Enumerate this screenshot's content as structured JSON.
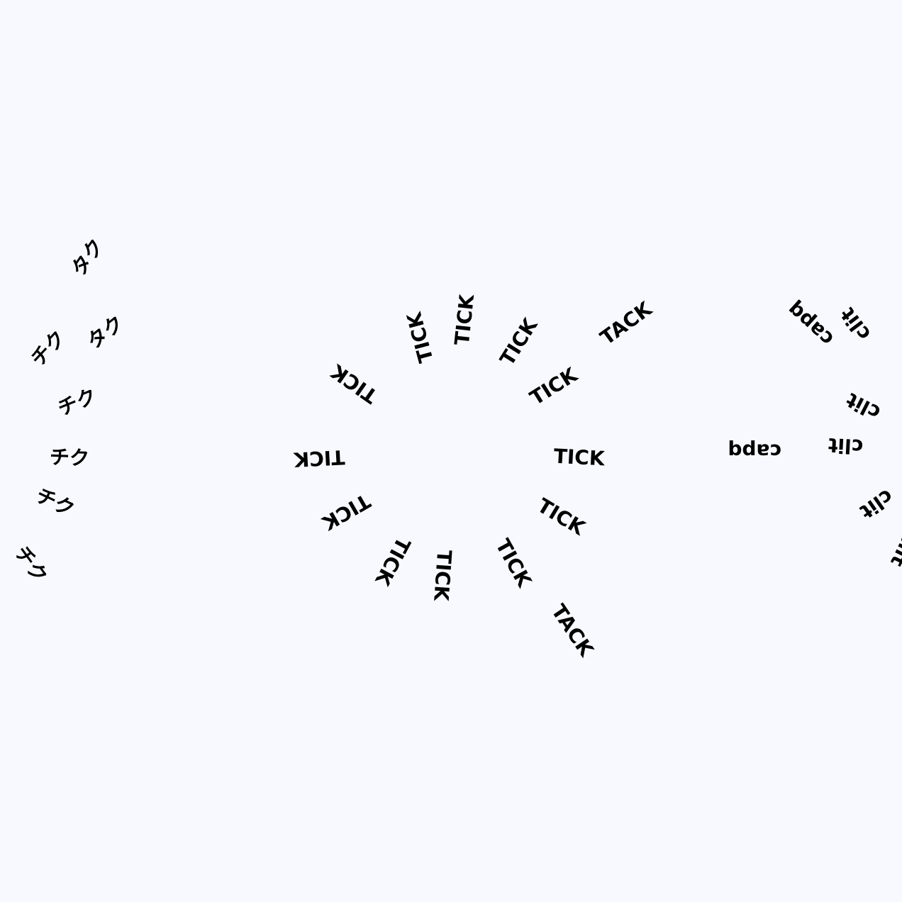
{
  "clocks": [
    {
      "name": "japanese-clock",
      "tick": "チク",
      "tack": "タク",
      "labels": [
        "チク",
        "チク",
        "チク",
        "チク",
        "チク",
        "チク",
        "タク",
        "タク"
      ]
    },
    {
      "name": "english-clock",
      "tick": "TICK",
      "tack": "TACK",
      "labels": [
        "TICK",
        "TICK",
        "TICK",
        "TICK",
        "TICK",
        "TACK",
        "TICK",
        "TICK",
        "TICK",
        "TICK",
        "TICK",
        "TICK",
        "TICK",
        "TACK"
      ]
    },
    {
      "name": "french-clock",
      "tick": "clit",
      "tack": "capq",
      "labels": [
        "clit",
        "clit",
        "clit",
        "clit",
        "capq",
        "capq",
        "clit"
      ]
    }
  ]
}
